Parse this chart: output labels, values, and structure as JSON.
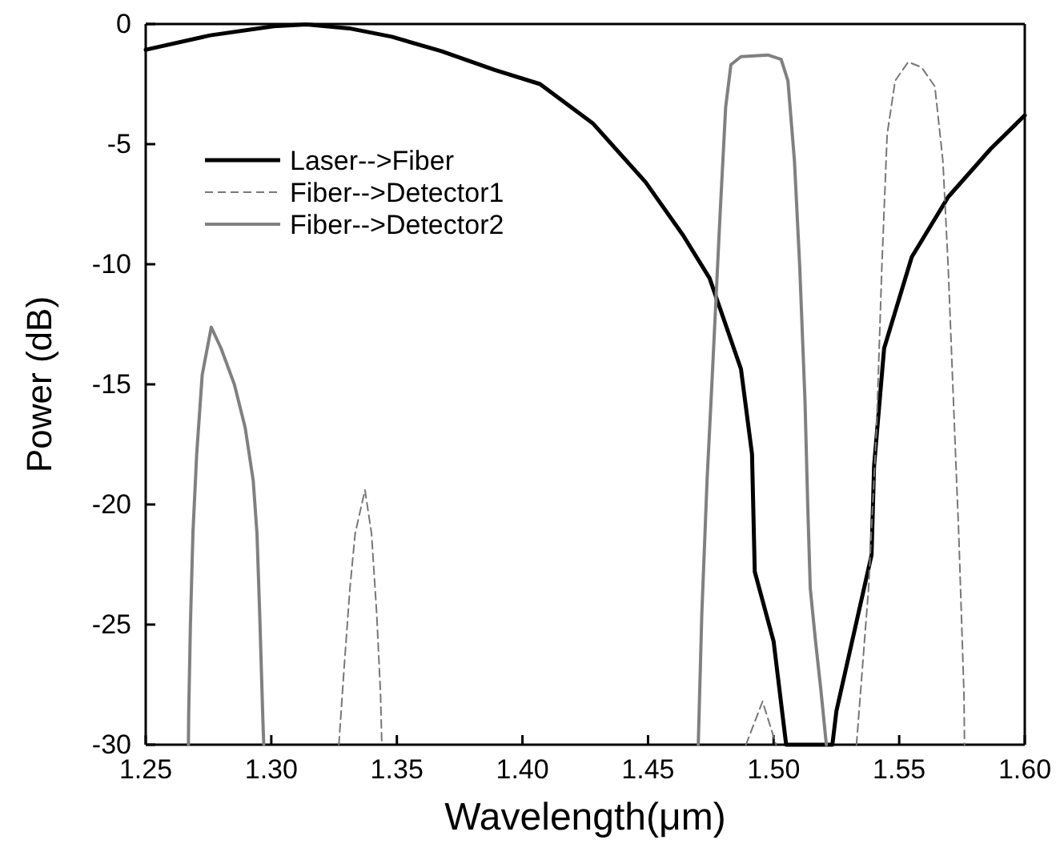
{
  "chart_data": {
    "type": "line",
    "xlabel": "Wavelength(μm)",
    "ylabel": "Power (dB)",
    "xlim": [
      1.25,
      1.6
    ],
    "ylim": [
      -30,
      0
    ],
    "xticks": [
      1.25,
      {
        "value": 1.3,
        "label": "1.30"
      },
      1.35,
      {
        "value": 1.4,
        "label": "1.40"
      },
      1.45,
      {
        "value": 1.5,
        "label": "1.50"
      },
      1.55,
      {
        "value": 1.6,
        "label": "1.60"
      }
    ],
    "yticks": [
      -30,
      -25,
      -20,
      -15,
      -10,
      -5,
      0
    ],
    "grid": false,
    "legend": "top left",
    "series": [
      {
        "name": "Laser-->Fiber",
        "color": "#000000",
        "line_style": "solid",
        "x": [
          1.25,
          1.2757,
          1.301,
          1.314,
          1.331,
          1.348,
          1.3677,
          1.389,
          1.407,
          1.428,
          1.449,
          1.464,
          1.4745,
          1.487,
          1.4914,
          1.4925,
          1.5,
          1.5036,
          1.505,
          1.5234,
          1.525,
          1.539,
          1.54,
          1.544,
          1.555,
          1.5695,
          1.5864,
          1.6
        ],
        "values": [
          -1.07,
          -0.47,
          -0.09,
          -0.02,
          -0.18,
          -0.53,
          -1.13,
          -1.91,
          -2.5,
          -4.13,
          -6.58,
          -8.8,
          -10.58,
          -14.36,
          -17.9,
          -22.8,
          -25.7,
          -28.8,
          -30,
          -30,
          -28.6,
          -22.1,
          -18.4,
          -13.5,
          -9.7,
          -7.2,
          -5.2,
          -3.8
        ]
      },
      {
        "name": "Fiber-->Detector1",
        "color": "#777777",
        "line_style": "dashed",
        "x": [
          1.3269,
          1.329,
          1.3313,
          1.3334,
          1.3373,
          1.3399,
          1.342,
          1.3435,
          1.344,
          null,
          1.489,
          1.4956,
          1.501,
          null,
          1.533,
          1.5378,
          1.541,
          1.5431,
          1.5452,
          1.5484,
          1.5536,
          1.5589,
          1.5642,
          1.5674,
          1.5695,
          1.5716,
          1.5737,
          1.5758,
          1.576
        ],
        "values": [
          -30,
          -26.8,
          -23.5,
          -21.2,
          -19.4,
          -21.2,
          -24.6,
          -27.9,
          -30,
          null,
          -30,
          -28.2,
          -30,
          null,
          -30,
          -23.5,
          -16.8,
          -10.1,
          -4.6,
          -2.36,
          -1.58,
          -1.8,
          -2.6,
          -5.7,
          -10.1,
          -15.7,
          -21.2,
          -27.9,
          -30
        ]
      },
      {
        "name": "Fiber-->Detector2",
        "color": "#808080",
        "line_style": "solid",
        "x": [
          1.267,
          1.2671,
          1.2678,
          1.2688,
          1.2703,
          1.2725,
          1.2761,
          1.28,
          1.2853,
          1.2896,
          1.2928,
          1.2943,
          1.2954,
          1.2966,
          1.297,
          null,
          1.47,
          1.4714,
          1.4735,
          1.4756,
          1.4787,
          1.4809,
          1.483,
          1.487,
          1.4977,
          1.503,
          1.5057,
          1.5083,
          1.5104,
          1.5125,
          1.5136,
          1.5146,
          1.5167,
          1.5188,
          1.521
        ],
        "values": [
          -30,
          -28.8,
          -25,
          -21.2,
          -17.9,
          -14.6,
          -12.62,
          -13.5,
          -15,
          -16.8,
          -19,
          -21.2,
          -24.6,
          -28.8,
          -30,
          null,
          -30,
          -24.6,
          -19,
          -14.6,
          -7.9,
          -3.47,
          -1.69,
          -1.36,
          -1.29,
          -1.47,
          -2.36,
          -5.7,
          -10.1,
          -15.7,
          -20.1,
          -23.5,
          -25.7,
          -27.7,
          -30
        ]
      }
    ]
  }
}
